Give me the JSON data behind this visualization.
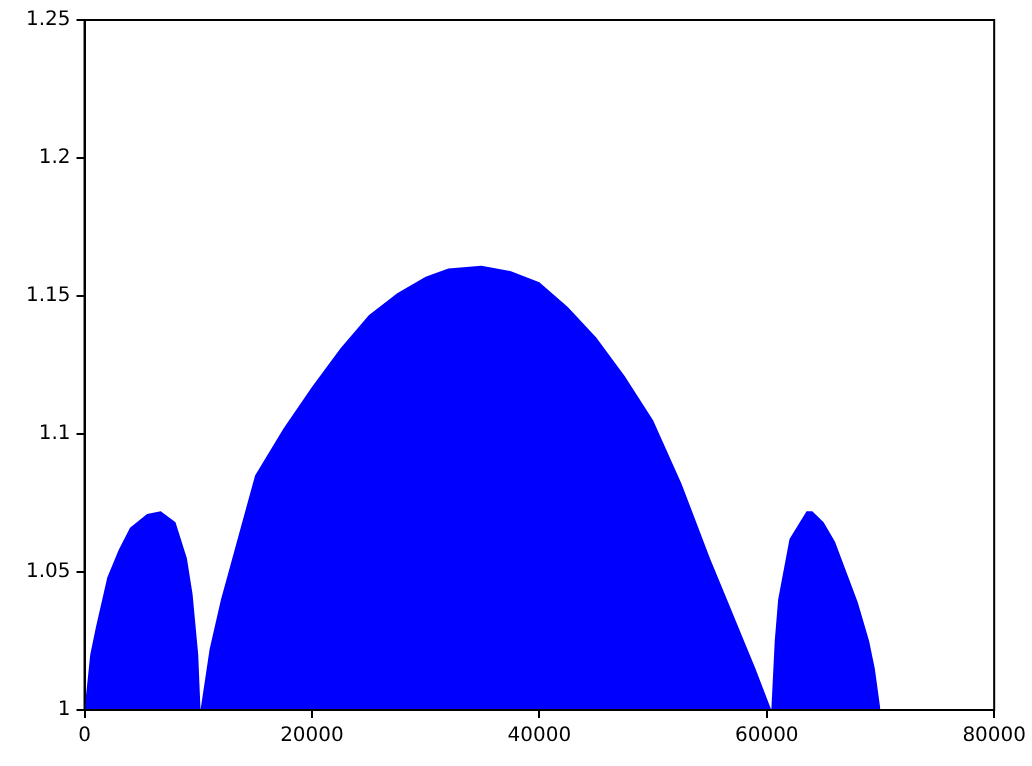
{
  "chart_data": {
    "type": "area",
    "x": [
      0,
      500,
      1000,
      2000,
      3000,
      4000,
      5500,
      6700,
      8000,
      9000,
      9500,
      10000,
      10200,
      11000,
      12000,
      13000,
      15000,
      17500,
      20000,
      22500,
      25000,
      27500,
      30000,
      32000,
      34900,
      37500,
      40000,
      42500,
      45000,
      47500,
      50000,
      52500,
      55000,
      56500,
      58000,
      59000,
      60400,
      60700,
      61000,
      62000,
      63500,
      64000,
      65000,
      66000,
      67000,
      68000,
      69000,
      69500,
      70000
    ],
    "series": [
      {
        "color": "#0000ff",
        "values": [
          1.0,
          1.02,
          1.03,
          1.048,
          1.058,
          1.066,
          1.071,
          1.072,
          1.068,
          1.055,
          1.042,
          1.02,
          1.0,
          1.022,
          1.04,
          1.055,
          1.085,
          1.102,
          1.117,
          1.131,
          1.143,
          1.151,
          1.157,
          1.16,
          1.161,
          1.159,
          1.155,
          1.146,
          1.135,
          1.121,
          1.105,
          1.082,
          1.055,
          1.04,
          1.025,
          1.015,
          1.0,
          1.025,
          1.04,
          1.062,
          1.072,
          1.072,
          1.068,
          1.061,
          1.05,
          1.039,
          1.025,
          1.015,
          1.0
        ]
      }
    ],
    "xlim": [
      0,
      80000
    ],
    "xticks": [
      0,
      20000,
      40000,
      60000,
      80000
    ],
    "ylim": [
      1,
      1.25
    ],
    "yticks": [
      1,
      1.05,
      1.1,
      1.15,
      1.2,
      1.25
    ],
    "grid": false,
    "legend": false
  }
}
